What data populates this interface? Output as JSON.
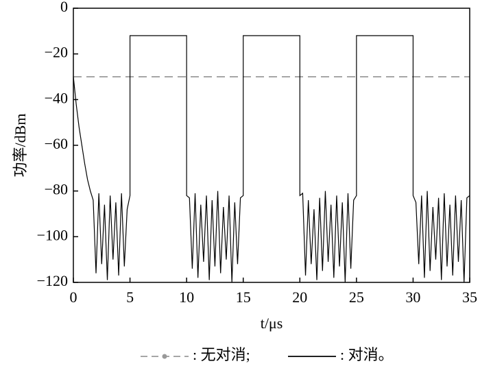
{
  "chart_data": {
    "type": "line",
    "xlabel": "t/μs",
    "ylabel": "功率/dBm",
    "xlim": [
      0,
      35
    ],
    "ylim": [
      -120,
      0
    ],
    "xticks": [
      0,
      5,
      10,
      15,
      20,
      25,
      30,
      35
    ],
    "yticks": [
      0,
      {
        "value": -20,
        "label": "−20"
      },
      {
        "value": -40,
        "label": "−40"
      },
      {
        "value": -60,
        "label": "−60"
      },
      {
        "value": -80,
        "label": "−80"
      },
      {
        "value": -100,
        "label": "−100"
      },
      {
        "value": -120,
        "label": "−120"
      }
    ],
    "series": [
      {
        "name": ": 无对消;",
        "color": "#999999",
        "dashed": true,
        "x": [
          0,
          35
        ],
        "values": [
          -30,
          -30
        ]
      },
      {
        "name": ": 对消。",
        "color": "#000000",
        "dashed": false,
        "x": [
          0,
          0.25,
          0.5,
          0.75,
          1,
          1.25,
          1.5,
          1.75,
          2,
          2.25,
          2.5,
          2.75,
          3,
          3.25,
          3.5,
          3.75,
          4,
          4.25,
          4.5,
          4.75,
          5,
          5,
          10,
          10,
          10.25,
          10.5,
          10.75,
          11,
          11.25,
          11.5,
          11.75,
          12,
          12.25,
          12.5,
          12.75,
          13,
          13.25,
          13.5,
          13.75,
          14,
          14.25,
          14.5,
          14.75,
          15,
          15,
          20,
          20,
          20.25,
          20.5,
          20.75,
          21,
          21.25,
          21.5,
          21.75,
          22,
          22.25,
          22.5,
          22.75,
          23,
          23.25,
          23.5,
          23.75,
          24,
          24.25,
          24.5,
          24.75,
          25,
          25,
          30,
          30,
          30.25,
          30.5,
          30.75,
          31,
          31.25,
          31.5,
          31.75,
          32,
          32.25,
          32.5,
          32.75,
          33,
          33.25,
          33.5,
          33.75,
          34,
          34.25,
          34.5,
          34.75,
          35
        ],
        "values": [
          -30,
          -42,
          -52,
          -60,
          -68,
          -75,
          -80,
          -84,
          -116,
          -81,
          -112,
          -86,
          -119,
          -82,
          -110,
          -85,
          -117,
          -81,
          -113,
          -88,
          -82,
          -12,
          -12,
          -82,
          -83,
          -114,
          -81,
          -118,
          -86,
          -111,
          -82,
          -119,
          -84,
          -113,
          -80,
          -116,
          -87,
          -110,
          -82,
          -120,
          -85,
          -112,
          -83,
          -82,
          -12,
          -12,
          -82,
          -81,
          -117,
          -84,
          -112,
          -88,
          -119,
          -83,
          -115,
          -80,
          -111,
          -86,
          -118,
          -82,
          -113,
          -85,
          -120,
          -81,
          -114,
          -84,
          -82,
          -12,
          -12,
          -82,
          -85,
          -112,
          -82,
          -118,
          -80,
          -115,
          -87,
          -110,
          -83,
          -119,
          -81,
          -113,
          -86,
          -117,
          -82,
          -111,
          -84,
          -120,
          -83,
          -82
        ]
      }
    ]
  }
}
